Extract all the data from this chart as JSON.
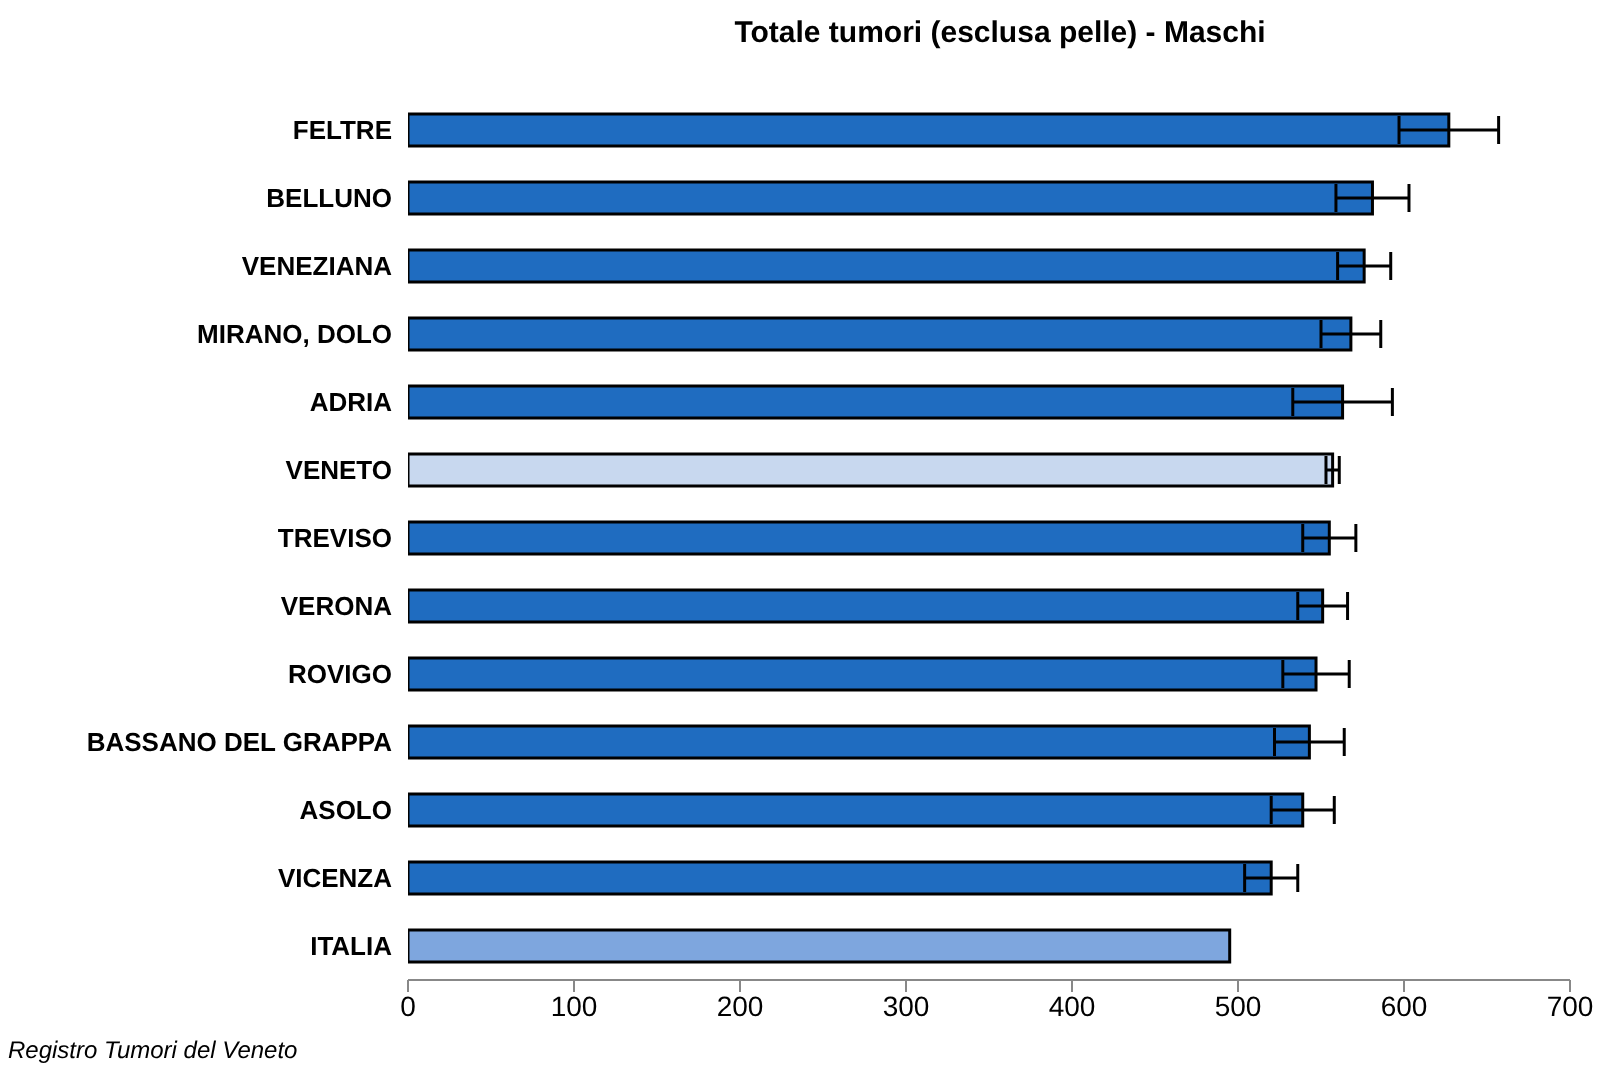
{
  "chart_data": {
    "type": "bar",
    "orientation": "horizontal",
    "title": "Totale tumori (esclusa pelle) - Maschi",
    "categories": [
      "FELTRE",
      "BELLUNO",
      "VENEZIANA",
      "MIRANO, DOLO",
      "ADRIA",
      "VENETO",
      "TREVISO",
      "VERONA",
      "ROVIGO",
      "BASSANO DEL GRAPPA",
      "ASOLO",
      "VICENZA",
      "ITALIA"
    ],
    "values": [
      627,
      581,
      576,
      568,
      563,
      557,
      555,
      551,
      547,
      543,
      539,
      520,
      495
    ],
    "errors": [
      30,
      22,
      16,
      18,
      30,
      4,
      16,
      15,
      20,
      21,
      19,
      16,
      null
    ],
    "colors": [
      "#1f6cc0",
      "#1f6cc0",
      "#1f6cc0",
      "#1f6cc0",
      "#1f6cc0",
      "#c8d8ef",
      "#1f6cc0",
      "#1f6cc0",
      "#1f6cc0",
      "#1f6cc0",
      "#1f6cc0",
      "#1f6cc0",
      "#7ea6de"
    ],
    "xlim": [
      0,
      700
    ],
    "xticks": [
      0,
      100,
      200,
      300,
      400,
      500,
      600,
      700
    ],
    "grid": false,
    "legend": false,
    "annotations": [
      "Registro Tumori del Veneto"
    ]
  }
}
